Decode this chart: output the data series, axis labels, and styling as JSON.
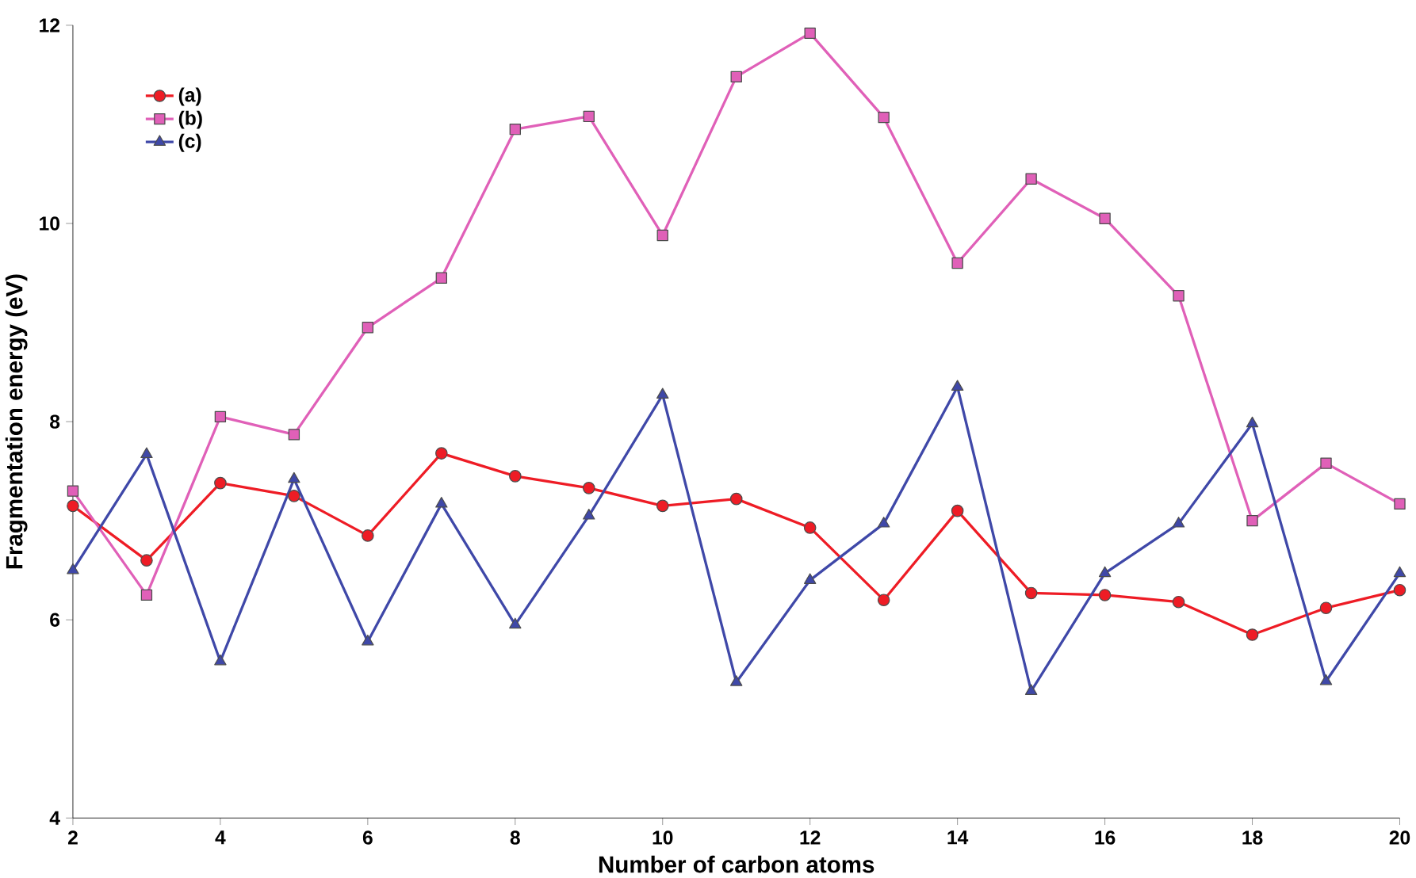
{
  "chart_data": {
    "type": "line",
    "xlabel": "Number of carbon atoms",
    "ylabel": "Fragmentation energy (eV)",
    "x": [
      2,
      3,
      4,
      5,
      6,
      7,
      8,
      9,
      10,
      11,
      12,
      13,
      14,
      15,
      16,
      17,
      18,
      19,
      20
    ],
    "xlim": [
      2,
      20
    ],
    "xticks": [
      2,
      4,
      6,
      8,
      10,
      12,
      14,
      16,
      18,
      20
    ],
    "ylim": [
      4,
      12
    ],
    "yticks": [
      4,
      6,
      8,
      10,
      12
    ],
    "grid": false,
    "legend": "top left",
    "series": [
      {
        "name": "(a)",
        "color": "#ee1c25",
        "marker": "circle",
        "values": [
          7.15,
          6.6,
          7.38,
          7.25,
          6.85,
          7.68,
          7.45,
          7.33,
          7.15,
          7.22,
          6.93,
          6.2,
          7.1,
          6.27,
          6.25,
          6.18,
          5.85,
          6.12,
          6.3
        ]
      },
      {
        "name": "(b)",
        "color": "#e060b8",
        "marker": "square",
        "values": [
          7.3,
          6.25,
          8.05,
          7.87,
          8.95,
          9.45,
          10.95,
          11.08,
          9.88,
          11.48,
          11.92,
          11.07,
          9.6,
          10.45,
          10.05,
          9.27,
          7.0,
          7.58,
          7.17
        ]
      },
      {
        "name": "(c)",
        "color": "#3f48a8",
        "marker": "triangle",
        "values": [
          6.5,
          7.67,
          5.58,
          7.42,
          5.78,
          7.17,
          5.95,
          7.05,
          8.27,
          5.37,
          6.4,
          6.97,
          8.35,
          5.28,
          6.47,
          6.97,
          7.98,
          5.38,
          6.47
        ]
      }
    ]
  }
}
